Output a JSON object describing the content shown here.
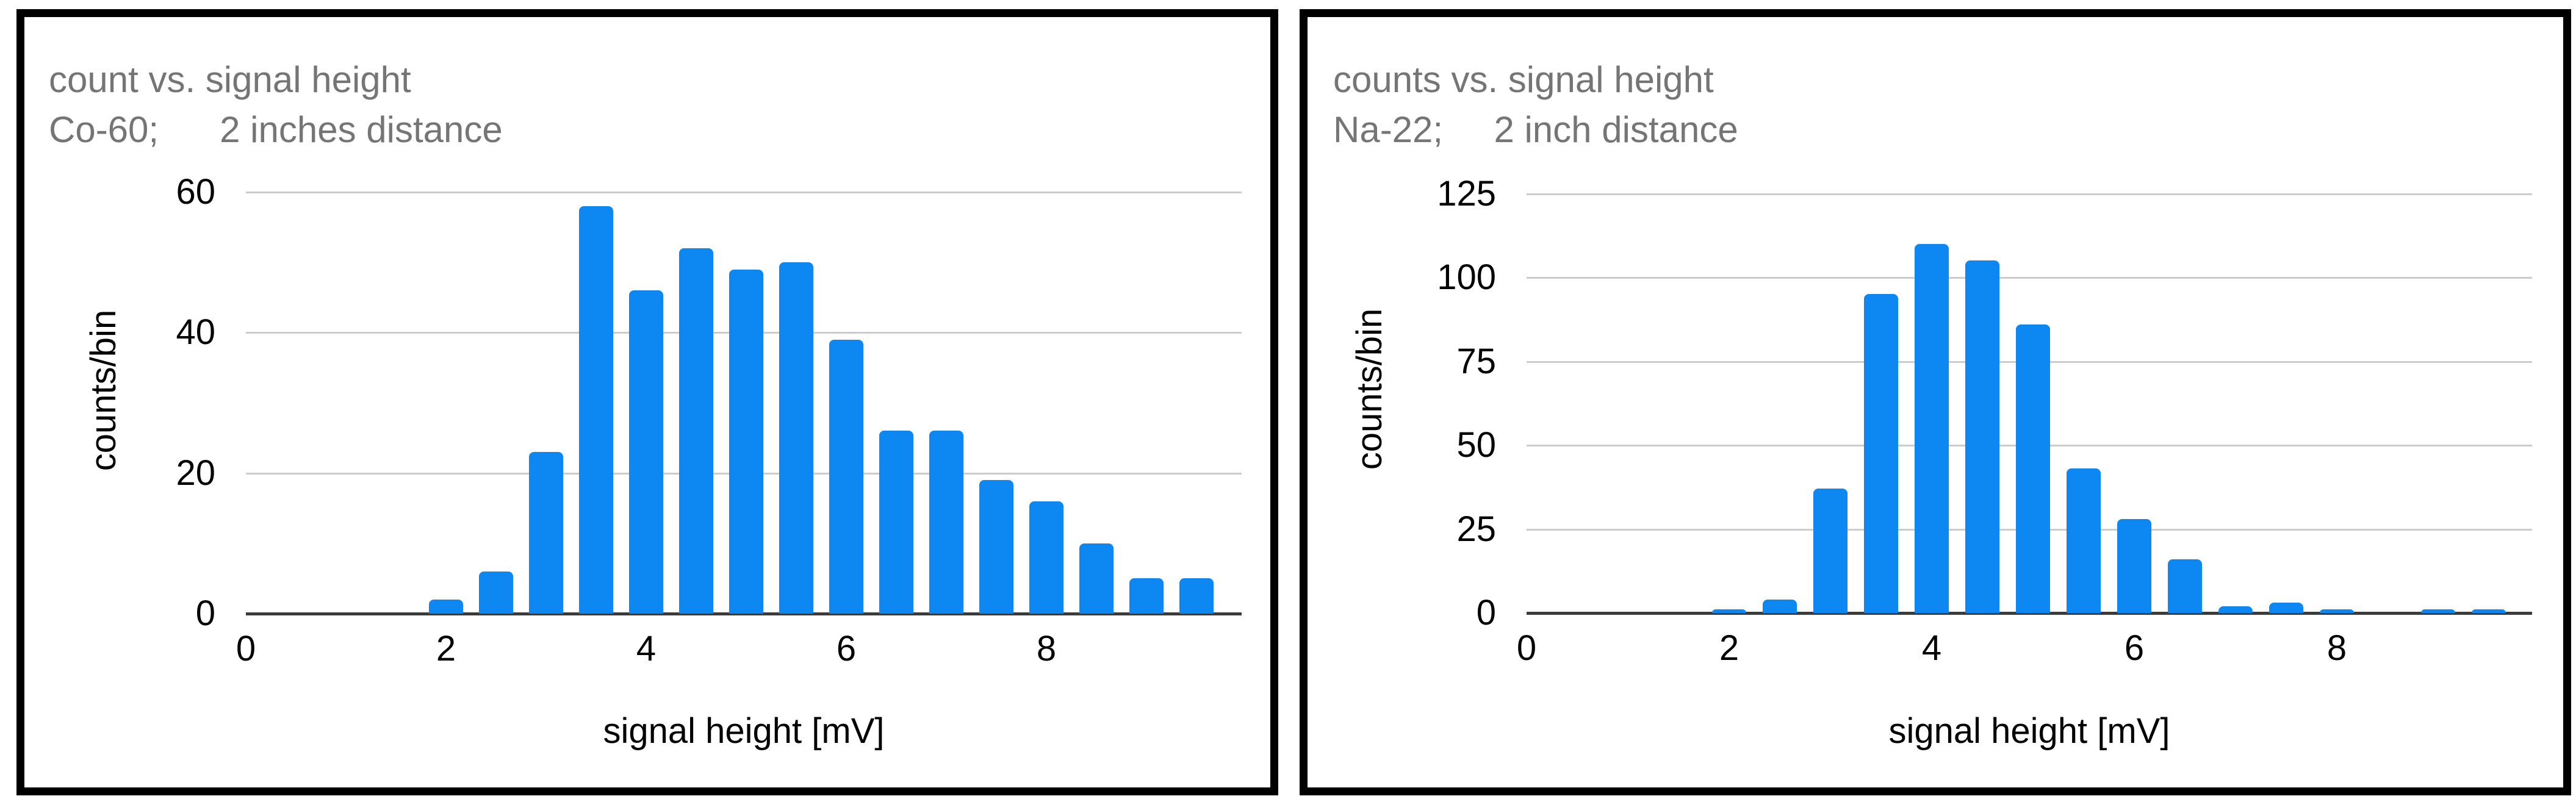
{
  "page_background": "#ffffff",
  "colors": {
    "bar_blue": "#0d87f2",
    "gridline": "#cccccc",
    "axis_line": "#3b3b3b",
    "title_gray": "#757575",
    "tick_black": "#000000",
    "panel_border": "#000000"
  },
  "chart_data": [
    {
      "type": "bar",
      "title": "count vs. signal height",
      "subtitle": "Co-60;      2 inches distance",
      "xlabel": "signal height [mV]",
      "ylabel": "counts/bin",
      "x": [
        2,
        2.5,
        3,
        3.5,
        4,
        4.5,
        5,
        5.5,
        6,
        6.5,
        7,
        7.5,
        8,
        8.5,
        9,
        9.5
      ],
      "values": [
        2,
        6,
        23,
        58,
        46,
        52,
        49,
        50,
        39,
        26,
        26,
        19,
        16,
        10,
        5,
        5
      ],
      "xlim": [
        0,
        10
      ],
      "ylim": [
        0,
        60
      ],
      "yticks": [
        0,
        20,
        40,
        60
      ],
      "ytick_labels": [
        "0",
        "20",
        "40",
        "60"
      ],
      "xticks": [
        0,
        2,
        4,
        6,
        8
      ],
      "xtick_labels": [
        "0",
        "2",
        "4",
        "6",
        "8"
      ],
      "grid": "horizontal",
      "legend": "none",
      "bar_color": "#0d87f2"
    },
    {
      "type": "bar",
      "title": "counts vs. signal height",
      "subtitle": "Na-22;     2 inch distance",
      "xlabel": "signal height [mV]",
      "ylabel": "counts/bin",
      "x": [
        2,
        2.5,
        3,
        3.5,
        4,
        4.5,
        5,
        5.5,
        6,
        6.5,
        7,
        7.5,
        8,
        8.5,
        9,
        9.5
      ],
      "values": [
        1,
        4,
        37,
        95,
        110,
        105,
        86,
        43,
        28,
        16,
        2,
        3,
        1,
        0,
        1,
        1
      ],
      "xlim": [
        0,
        10
      ],
      "ylim": [
        0,
        125
      ],
      "yticks": [
        0,
        25,
        50,
        75,
        100,
        125
      ],
      "ytick_labels": [
        "0",
        "25",
        "50",
        "75",
        "100",
        "125"
      ],
      "xticks": [
        0,
        2,
        4,
        6,
        8
      ],
      "xtick_labels": [
        "0",
        "2",
        "4",
        "6",
        "8"
      ],
      "grid": "horizontal",
      "legend": "none",
      "bar_color": "#0d87f2"
    }
  ]
}
